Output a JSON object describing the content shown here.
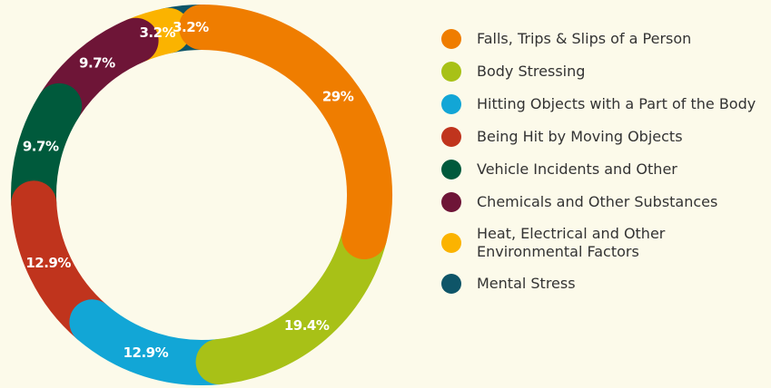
{
  "chart_data": {
    "type": "donut",
    "categories": [
      "Falls, Trips & Slips of a Person",
      "Body Stressing",
      "Hitting Objects with a Part of the Body",
      "Being Hit by Moving Objects",
      "Vehicle Incidents and Other",
      "Chemicals and Other Substances",
      "Heat, Electrical and Other\nEnvironmental Factors",
      "Mental Stress"
    ],
    "values": [
      29,
      19.4,
      12.9,
      12.9,
      9.7,
      9.7,
      3.2,
      3.2
    ],
    "value_labels": [
      "29%",
      "19.4%",
      "12.9%",
      "12.9%",
      "9.7%",
      "9.7%",
      "3.2%",
      "3.2%"
    ],
    "colors": [
      "#ef7d00",
      "#a8c117",
      "#12a6d6",
      "#c0341d",
      "#005a3c",
      "#6e1537",
      "#fbb300",
      "#0e5568"
    ]
  }
}
